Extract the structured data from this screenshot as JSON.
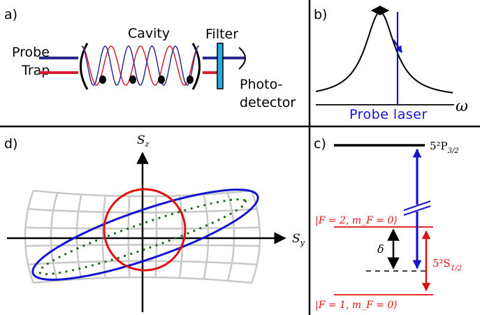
{
  "panels": {
    "a": {
      "label": "a)",
      "cavity": "Cavity",
      "filter": "Filter",
      "probe": "Probe",
      "trap": "Trap",
      "photo_1": "Photo-",
      "photo_2": "detector"
    },
    "b": {
      "label": "b)",
      "probe_laser": "Probe laser",
      "omega": "ω"
    },
    "c": {
      "label": "c)",
      "excited_state": {
        "base": "5²P",
        "sub": "3/2"
      },
      "ground_state": {
        "base": "5²S",
        "sub": "1/2"
      },
      "state_upper": "|F = 2, m_F = 0⟩",
      "state_lower": "|F = 1, m_F = 0⟩",
      "delta": "δ"
    },
    "d": {
      "label": "d)",
      "axis_z": {
        "base": "S",
        "sub": "z"
      },
      "axis_y": {
        "base": "S",
        "sub": "y"
      }
    }
  },
  "colors": {
    "probe": "#2b2b8f",
    "trap": "#d42030",
    "filter": "#29a9e0",
    "laser_blue": "#1414d0",
    "red": "#e01010",
    "green": "#1a6b1a",
    "grid": "#c8c8c8"
  }
}
